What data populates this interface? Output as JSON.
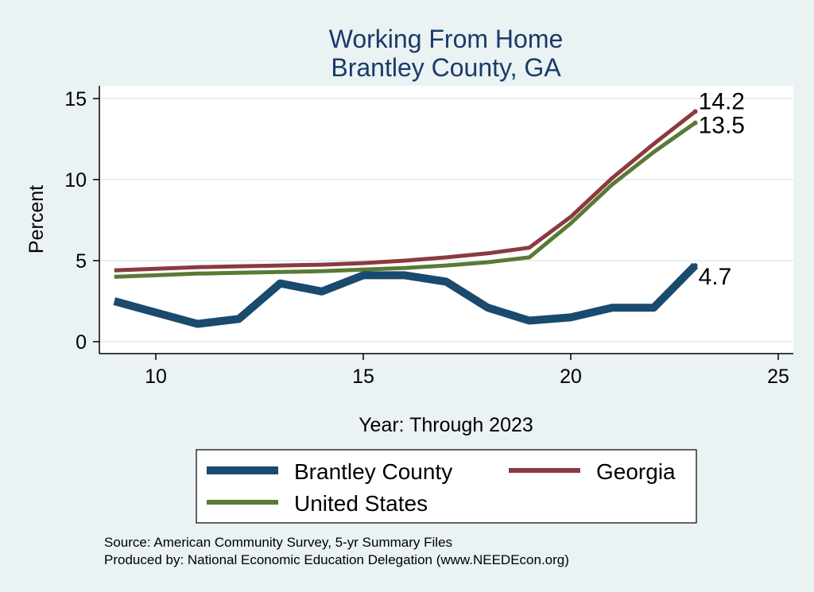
{
  "chart_data": {
    "type": "line",
    "title": [
      "Working From Home",
      "Brantley County, GA"
    ],
    "xlabel": "Year: Through 2023",
    "ylabel": "Percent",
    "xlim": [
      9,
      25
    ],
    "ylim": [
      0,
      15
    ],
    "xticks": [
      10,
      15,
      20,
      25
    ],
    "yticks": [
      0,
      5,
      10,
      15
    ],
    "grid": "horizontal",
    "x": [
      9,
      10,
      11,
      12,
      13,
      14,
      15,
      16,
      17,
      18,
      19,
      20,
      21,
      22,
      23
    ],
    "series": [
      {
        "name": "Brantley County",
        "color": "#1a4a6e",
        "values": [
          2.5,
          1.8,
          1.1,
          1.4,
          3.6,
          3.1,
          4.1,
          4.1,
          3.7,
          2.1,
          1.3,
          1.5,
          2.1,
          2.1,
          4.7
        ],
        "end_label": "4.7"
      },
      {
        "name": "Georgia",
        "color": "#8b3a3f",
        "values": [
          4.4,
          4.5,
          4.6,
          4.65,
          4.7,
          4.75,
          4.85,
          5.0,
          5.2,
          5.45,
          5.8,
          7.7,
          10.1,
          12.2,
          14.2
        ],
        "end_label": "14.2"
      },
      {
        "name": "United States",
        "color": "#5a7a34",
        "values": [
          4.0,
          4.1,
          4.2,
          4.25,
          4.3,
          4.35,
          4.45,
          4.55,
          4.7,
          4.9,
          5.2,
          7.3,
          9.7,
          11.7,
          13.5
        ],
        "end_label": "13.5"
      }
    ],
    "legend": {
      "placement": "bottom",
      "entries": [
        "Brantley County",
        "Georgia",
        "United States"
      ]
    }
  },
  "notes": {
    "source": "Source: American Community Survey, 5-yr Summary Files",
    "produced_by": "Produced by: National Economic Education Delegation (www.NEEDEcon.org)"
  }
}
